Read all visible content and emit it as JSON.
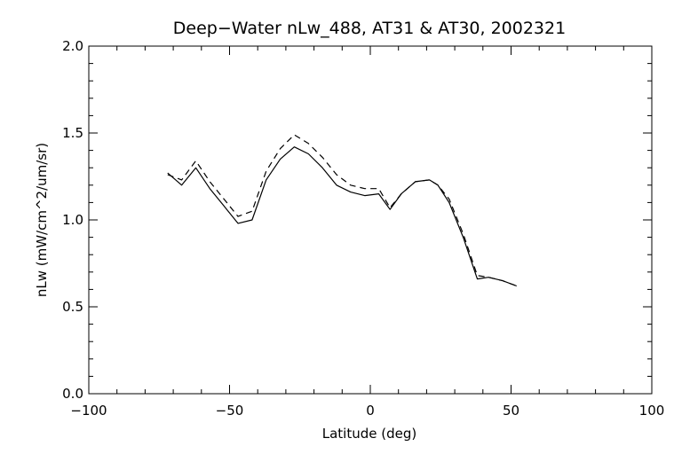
{
  "chart_data": {
    "type": "line",
    "title": "Deep−Water nLw_488, AT31 & AT30, 2002321",
    "xlabel": "Latitude (deg)",
    "ylabel": "nLw (mW/cm^2/um/sr)",
    "xlim": [
      -100,
      100
    ],
    "ylim": [
      0.0,
      2.0
    ],
    "x_ticks": [
      -100,
      -50,
      0,
      50,
      100
    ],
    "x_tick_labels": [
      "−100",
      "−50",
      "0",
      "50",
      "100"
    ],
    "y_ticks": [
      0.0,
      0.5,
      1.0,
      1.5,
      2.0
    ],
    "y_tick_labels": [
      "0.0",
      "0.5",
      "1.0",
      "1.5",
      "2.0"
    ],
    "x_minor_step": 10,
    "y_minor_step": 0.1,
    "grid": false,
    "series": [
      {
        "style": "solid",
        "x": [
          -72,
          -67,
          -62,
          -57,
          -52,
          -47,
          -42,
          -37,
          -32,
          -27,
          -22,
          -17,
          -12,
          -7,
          -2,
          3,
          7,
          11,
          16,
          21,
          24,
          28,
          33,
          38,
          42,
          47,
          52
        ],
        "y": [
          1.27,
          1.2,
          1.3,
          1.18,
          1.08,
          0.98,
          1.0,
          1.23,
          1.35,
          1.42,
          1.38,
          1.3,
          1.2,
          1.16,
          1.14,
          1.15,
          1.06,
          1.15,
          1.22,
          1.23,
          1.2,
          1.1,
          0.9,
          0.66,
          0.67,
          0.65,
          0.62
        ]
      },
      {
        "style": "dashed",
        "x": [
          -72,
          -67,
          -62,
          -57,
          -52,
          -47,
          -42,
          -37,
          -32,
          -27,
          -22,
          -17,
          -12,
          -7,
          -2,
          3,
          7,
          11,
          16,
          21,
          24,
          28,
          33,
          38,
          42,
          47,
          52
        ],
        "y": [
          1.26,
          1.23,
          1.34,
          1.22,
          1.12,
          1.02,
          1.05,
          1.28,
          1.41,
          1.49,
          1.44,
          1.36,
          1.26,
          1.2,
          1.18,
          1.18,
          1.07,
          1.15,
          1.22,
          1.23,
          1.2,
          1.12,
          0.92,
          0.68,
          0.67,
          0.65,
          0.62
        ]
      }
    ]
  }
}
